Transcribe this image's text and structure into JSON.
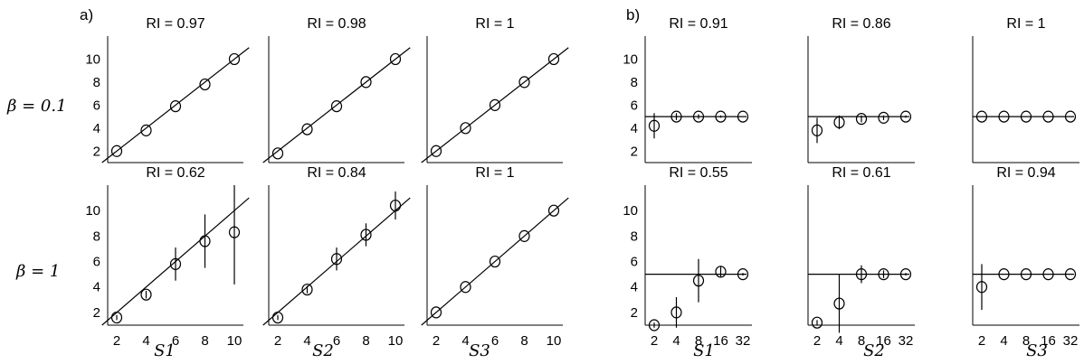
{
  "figure": {
    "panel_labels": [
      "a)",
      "b)"
    ]
  },
  "row_labels": [
    "β = 0.1",
    "β = 1"
  ],
  "column_labels": [
    "S1",
    "S2",
    "S3"
  ],
  "y_ticks": [
    2,
    4,
    6,
    8,
    10
  ],
  "x_ticks_a": [
    "2",
    "4",
    "6",
    "8",
    "10"
  ],
  "x_ticks_b": [
    "2",
    "4",
    "8",
    "16",
    "32"
  ],
  "chart_data": [
    {
      "type": "scatter",
      "group": "a",
      "ylim": [
        1,
        12
      ],
      "reference_line": "y = x",
      "x": [
        2,
        4,
        6,
        8,
        10
      ],
      "subplots": [
        {
          "row": 0,
          "col": 0,
          "title": "RI = 0.97",
          "y": [
            2,
            3.8,
            5.9,
            7.8,
            10
          ],
          "err": [
            0,
            0,
            0,
            0,
            0
          ]
        },
        {
          "row": 0,
          "col": 1,
          "title": "RI = 0.98",
          "y": [
            1.8,
            3.9,
            5.9,
            8,
            10
          ],
          "err": [
            0,
            0,
            0,
            0,
            0
          ]
        },
        {
          "row": 0,
          "col": 2,
          "title": "RI = 1",
          "y": [
            2,
            4,
            6,
            8,
            10
          ],
          "err": [
            0,
            0,
            0,
            0,
            0
          ]
        },
        {
          "row": 1,
          "col": 0,
          "title": "RI = 0.62",
          "y": [
            1.6,
            3.4,
            5.8,
            7.6,
            8.3
          ],
          "err": [
            0.2,
            0.3,
            1.3,
            2.1,
            4.1
          ]
        },
        {
          "row": 1,
          "col": 1,
          "title": "RI = 0.84",
          "y": [
            1.6,
            3.8,
            6.2,
            8.1,
            10.4
          ],
          "err": [
            0.2,
            0.3,
            0.9,
            0.9,
            1.1
          ]
        },
        {
          "row": 1,
          "col": 2,
          "title": "RI = 1",
          "y": [
            2,
            4,
            6,
            8,
            10
          ],
          "err": [
            0,
            0,
            0,
            0,
            0
          ]
        }
      ]
    },
    {
      "type": "scatter",
      "group": "b",
      "ylim": [
        1,
        12
      ],
      "reference_line": "y = 5",
      "x": [
        2,
        4,
        8,
        16,
        32
      ],
      "subplots": [
        {
          "row": 0,
          "col": 0,
          "title": "RI = 0.91",
          "y": [
            4.2,
            5,
            5,
            5,
            5
          ],
          "err": [
            1.1,
            0.3,
            0.2,
            0.1,
            0
          ]
        },
        {
          "row": 0,
          "col": 1,
          "title": "RI = 0.86",
          "y": [
            3.8,
            4.5,
            4.8,
            4.9,
            5
          ],
          "err": [
            1.1,
            0.6,
            0.3,
            0.2,
            0.1
          ]
        },
        {
          "row": 0,
          "col": 2,
          "title": "RI = 1",
          "y": [
            5,
            5,
            5,
            5,
            5
          ],
          "err": [
            0,
            0,
            0,
            0,
            0
          ]
        },
        {
          "row": 1,
          "col": 0,
          "title": "RI = 0.55",
          "y": [
            1,
            2,
            4.5,
            5.2,
            5
          ],
          "err": [
            0.2,
            1.2,
            1.7,
            0.4,
            0.1
          ]
        },
        {
          "row": 1,
          "col": 1,
          "title": "RI = 0.61",
          "y": [
            1.2,
            2.7,
            5,
            5,
            5
          ],
          "err": [
            0.2,
            2.3,
            0.7,
            0.3,
            0.1
          ]
        },
        {
          "row": 1,
          "col": 2,
          "title": "RI = 0.94",
          "y": [
            4,
            5,
            5,
            5,
            5
          ],
          "err": [
            1.8,
            0,
            0,
            0,
            0
          ]
        }
      ]
    }
  ]
}
